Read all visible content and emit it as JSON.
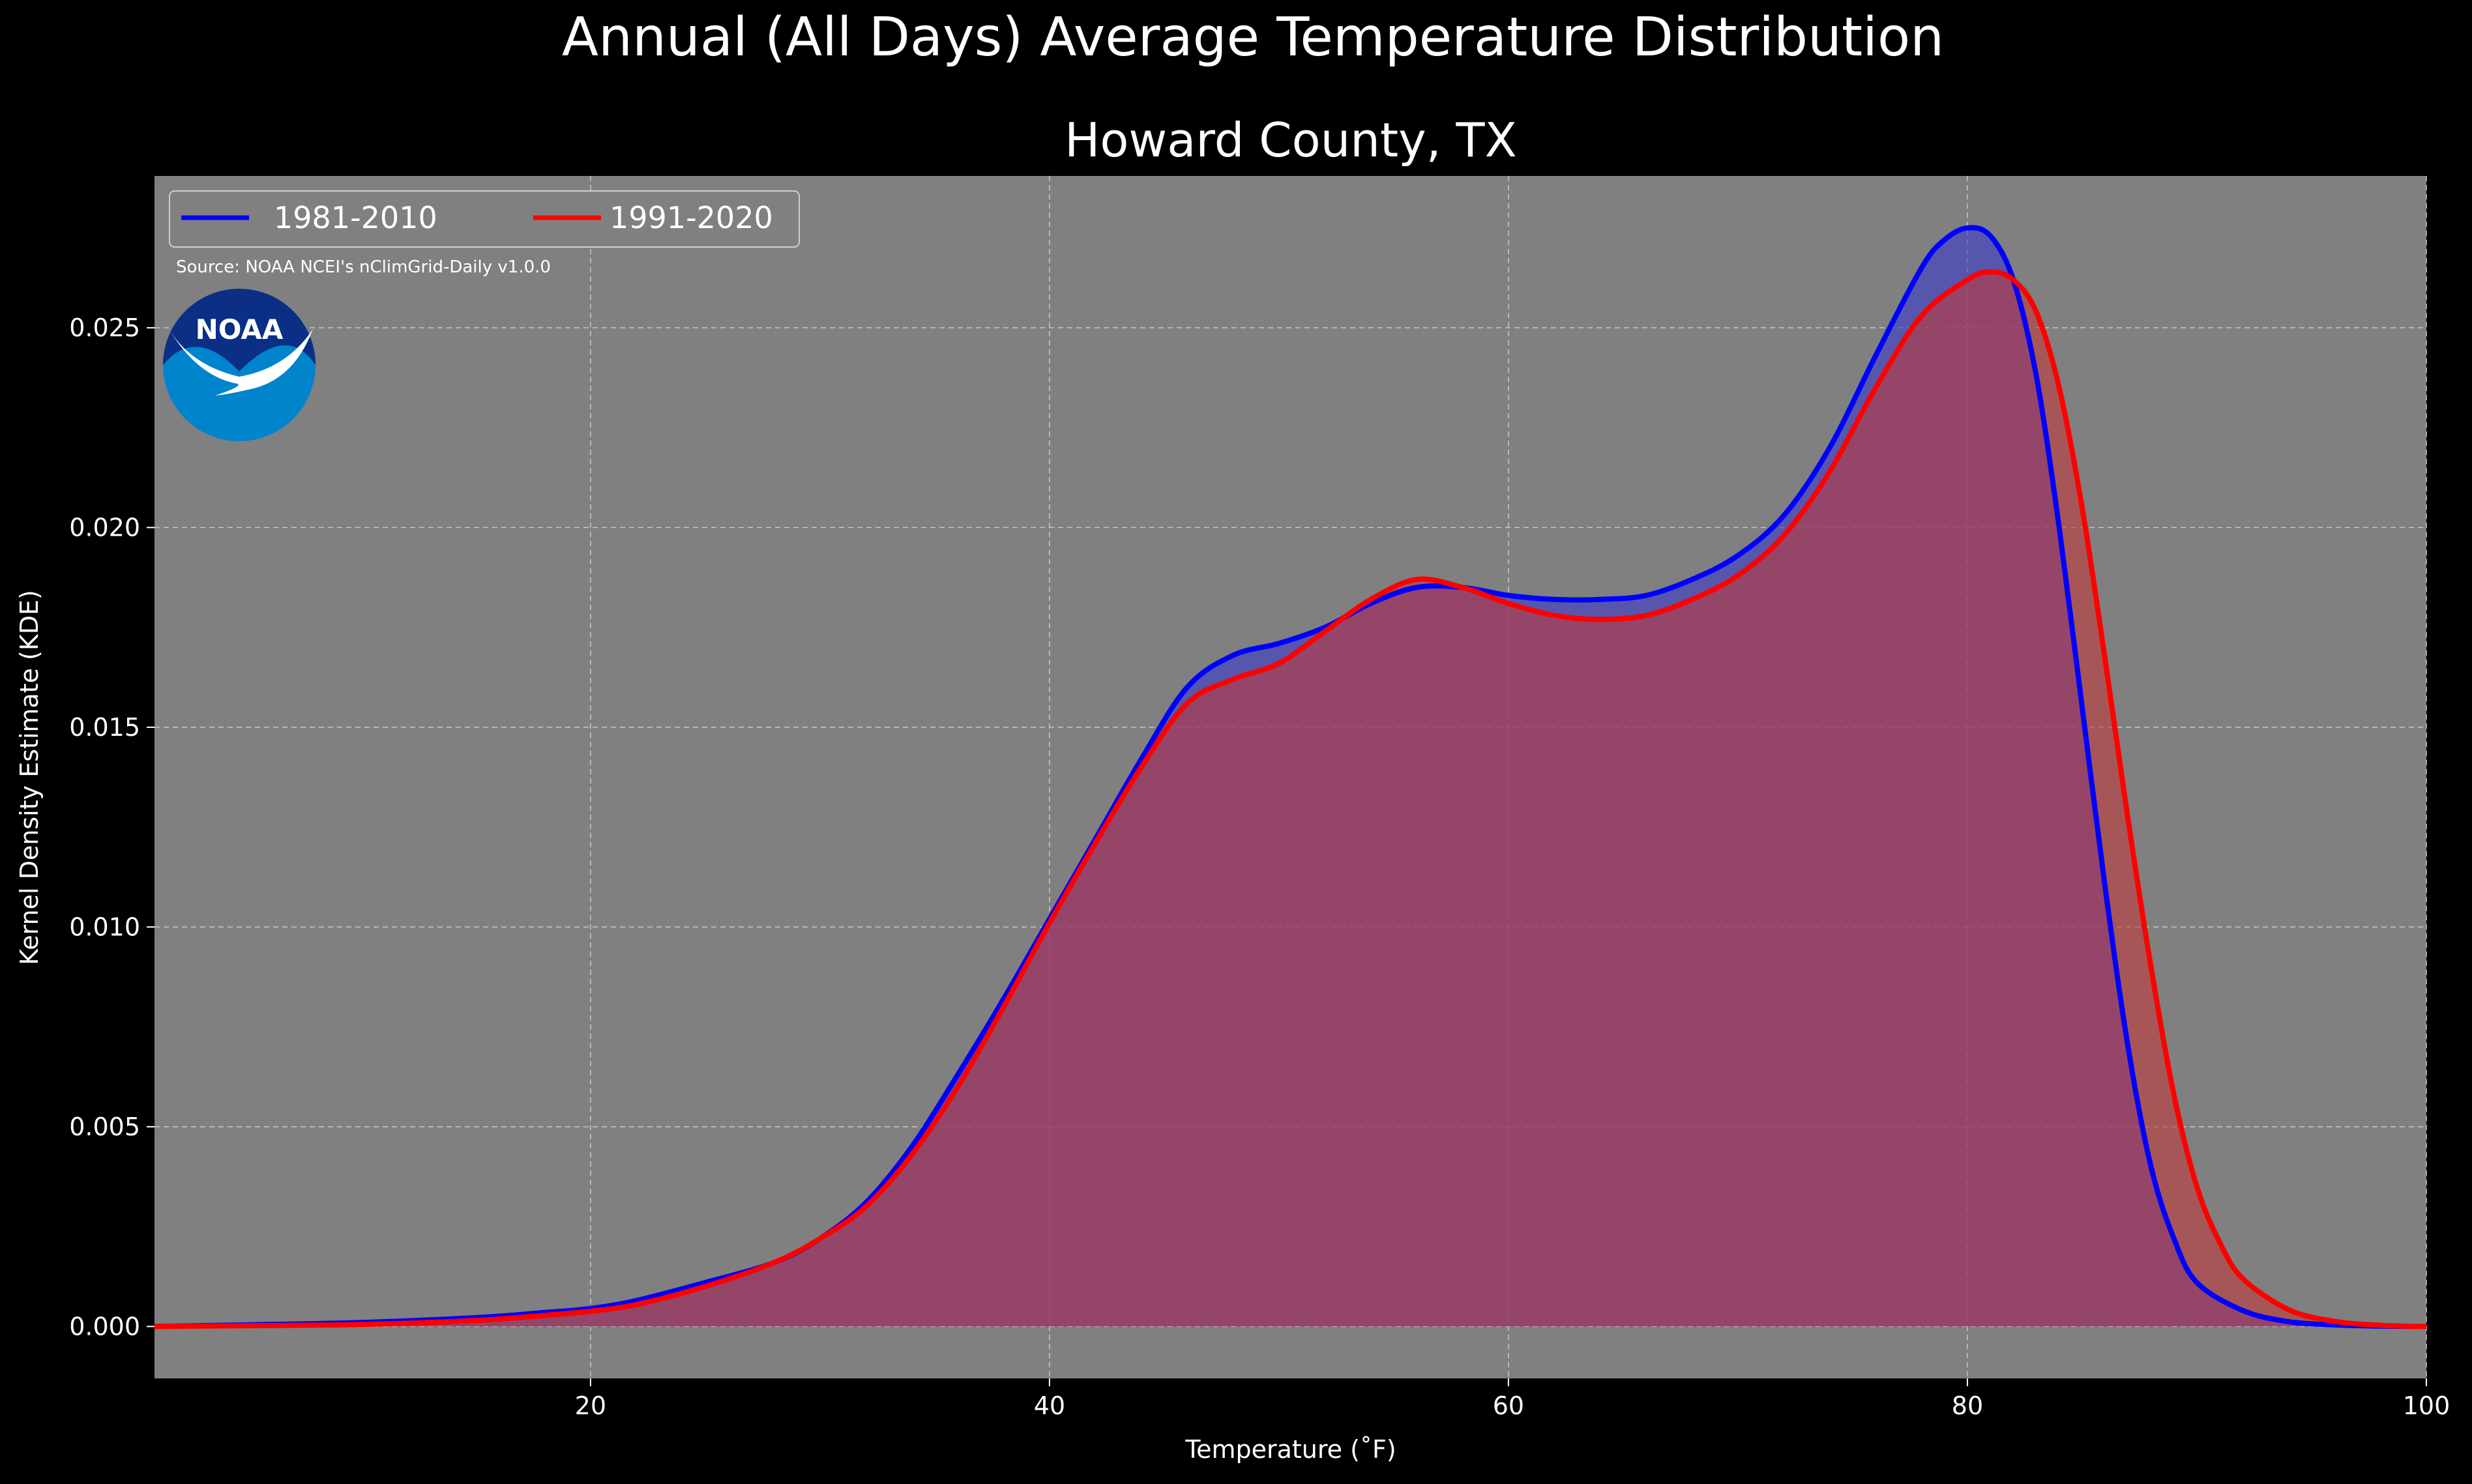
{
  "chart_data": {
    "type": "area",
    "title": "Annual (All Days) Average Temperature Distribution",
    "subtitle": "Howard County, TX",
    "xlabel": "Temperature ($^\\circ$F)",
    "xlabel_display": "Temperature (˚F)",
    "ylabel": "Kernel Density Estimate (KDE)",
    "xlim": [
      1,
      100
    ],
    "ylim": [
      -0.0013,
      0.0288
    ],
    "x_ticks": [
      20,
      40,
      60,
      80,
      100
    ],
    "x_tick_labels": [
      "20",
      "40",
      "60",
      "80",
      "100"
    ],
    "y_ticks": [
      0.0,
      0.005,
      0.01,
      0.015,
      0.02,
      0.025
    ],
    "y_tick_labels": [
      "0.000",
      "0.005",
      "0.010",
      "0.015",
      "0.020",
      "0.025"
    ],
    "grid": true,
    "legend_position": "top-left",
    "source_note": "Source: NOAA NCEI's nClimGrid-Daily v1.0.0",
    "logo_text": "NOAA",
    "series": [
      {
        "name": "1981-2010",
        "color": "#0000ff",
        "fill": "#3a3acc",
        "x": [
          1,
          5,
          10,
          15,
          18,
          20,
          22,
          25,
          28,
          30,
          32,
          34,
          36,
          38,
          40,
          42,
          44,
          46,
          48,
          50,
          52,
          54,
          56,
          58,
          60,
          62,
          64,
          66,
          68,
          70,
          72,
          74,
          76,
          78,
          79,
          80,
          81,
          82,
          83,
          84,
          85,
          86,
          87,
          88,
          89,
          90,
          92,
          94,
          96,
          98,
          100
        ],
        "values": [
          0.0,
          4e-05,
          0.0001,
          0.00022,
          0.00035,
          0.00045,
          0.00065,
          0.0011,
          0.0016,
          0.0022,
          0.0031,
          0.0045,
          0.0063,
          0.0082,
          0.0102,
          0.0122,
          0.0142,
          0.016,
          0.0168,
          0.0171,
          0.0175,
          0.0181,
          0.0185,
          0.0185,
          0.0183,
          0.0182,
          0.0182,
          0.0183,
          0.0187,
          0.0193,
          0.0203,
          0.022,
          0.0243,
          0.0265,
          0.0272,
          0.0275,
          0.0273,
          0.0262,
          0.0238,
          0.02,
          0.0155,
          0.011,
          0.007,
          0.004,
          0.0022,
          0.0011,
          0.0004,
          0.00012,
          4e-05,
          1e-05,
          0.0
        ]
      },
      {
        "name": "1991-2020",
        "color": "#ff0000",
        "fill": "#c03a3a",
        "x": [
          1,
          5,
          10,
          15,
          18,
          20,
          22,
          25,
          28,
          30,
          32,
          34,
          36,
          38,
          40,
          42,
          44,
          46,
          48,
          50,
          52,
          54,
          56,
          58,
          60,
          62,
          64,
          66,
          68,
          70,
          72,
          74,
          76,
          78,
          80,
          81,
          82,
          83,
          84,
          85,
          86,
          87,
          88,
          89,
          90,
          91,
          92,
          94,
          96,
          98,
          100
        ],
        "values": [
          0.0,
          2e-05,
          5e-05,
          0.00015,
          0.00028,
          0.00038,
          0.00055,
          0.001,
          0.0016,
          0.0022,
          0.003,
          0.0043,
          0.006,
          0.008,
          0.0101,
          0.0121,
          0.014,
          0.0156,
          0.0162,
          0.0166,
          0.0174,
          0.0182,
          0.0187,
          0.0185,
          0.0181,
          0.0178,
          0.0177,
          0.0178,
          0.0182,
          0.0188,
          0.0198,
          0.0214,
          0.0235,
          0.0253,
          0.0262,
          0.0264,
          0.0262,
          0.0254,
          0.0235,
          0.0205,
          0.0167,
          0.0127,
          0.009,
          0.0058,
          0.0035,
          0.0021,
          0.0012,
          0.00042,
          0.00013,
          3e-05,
          0.0
        ]
      }
    ]
  }
}
